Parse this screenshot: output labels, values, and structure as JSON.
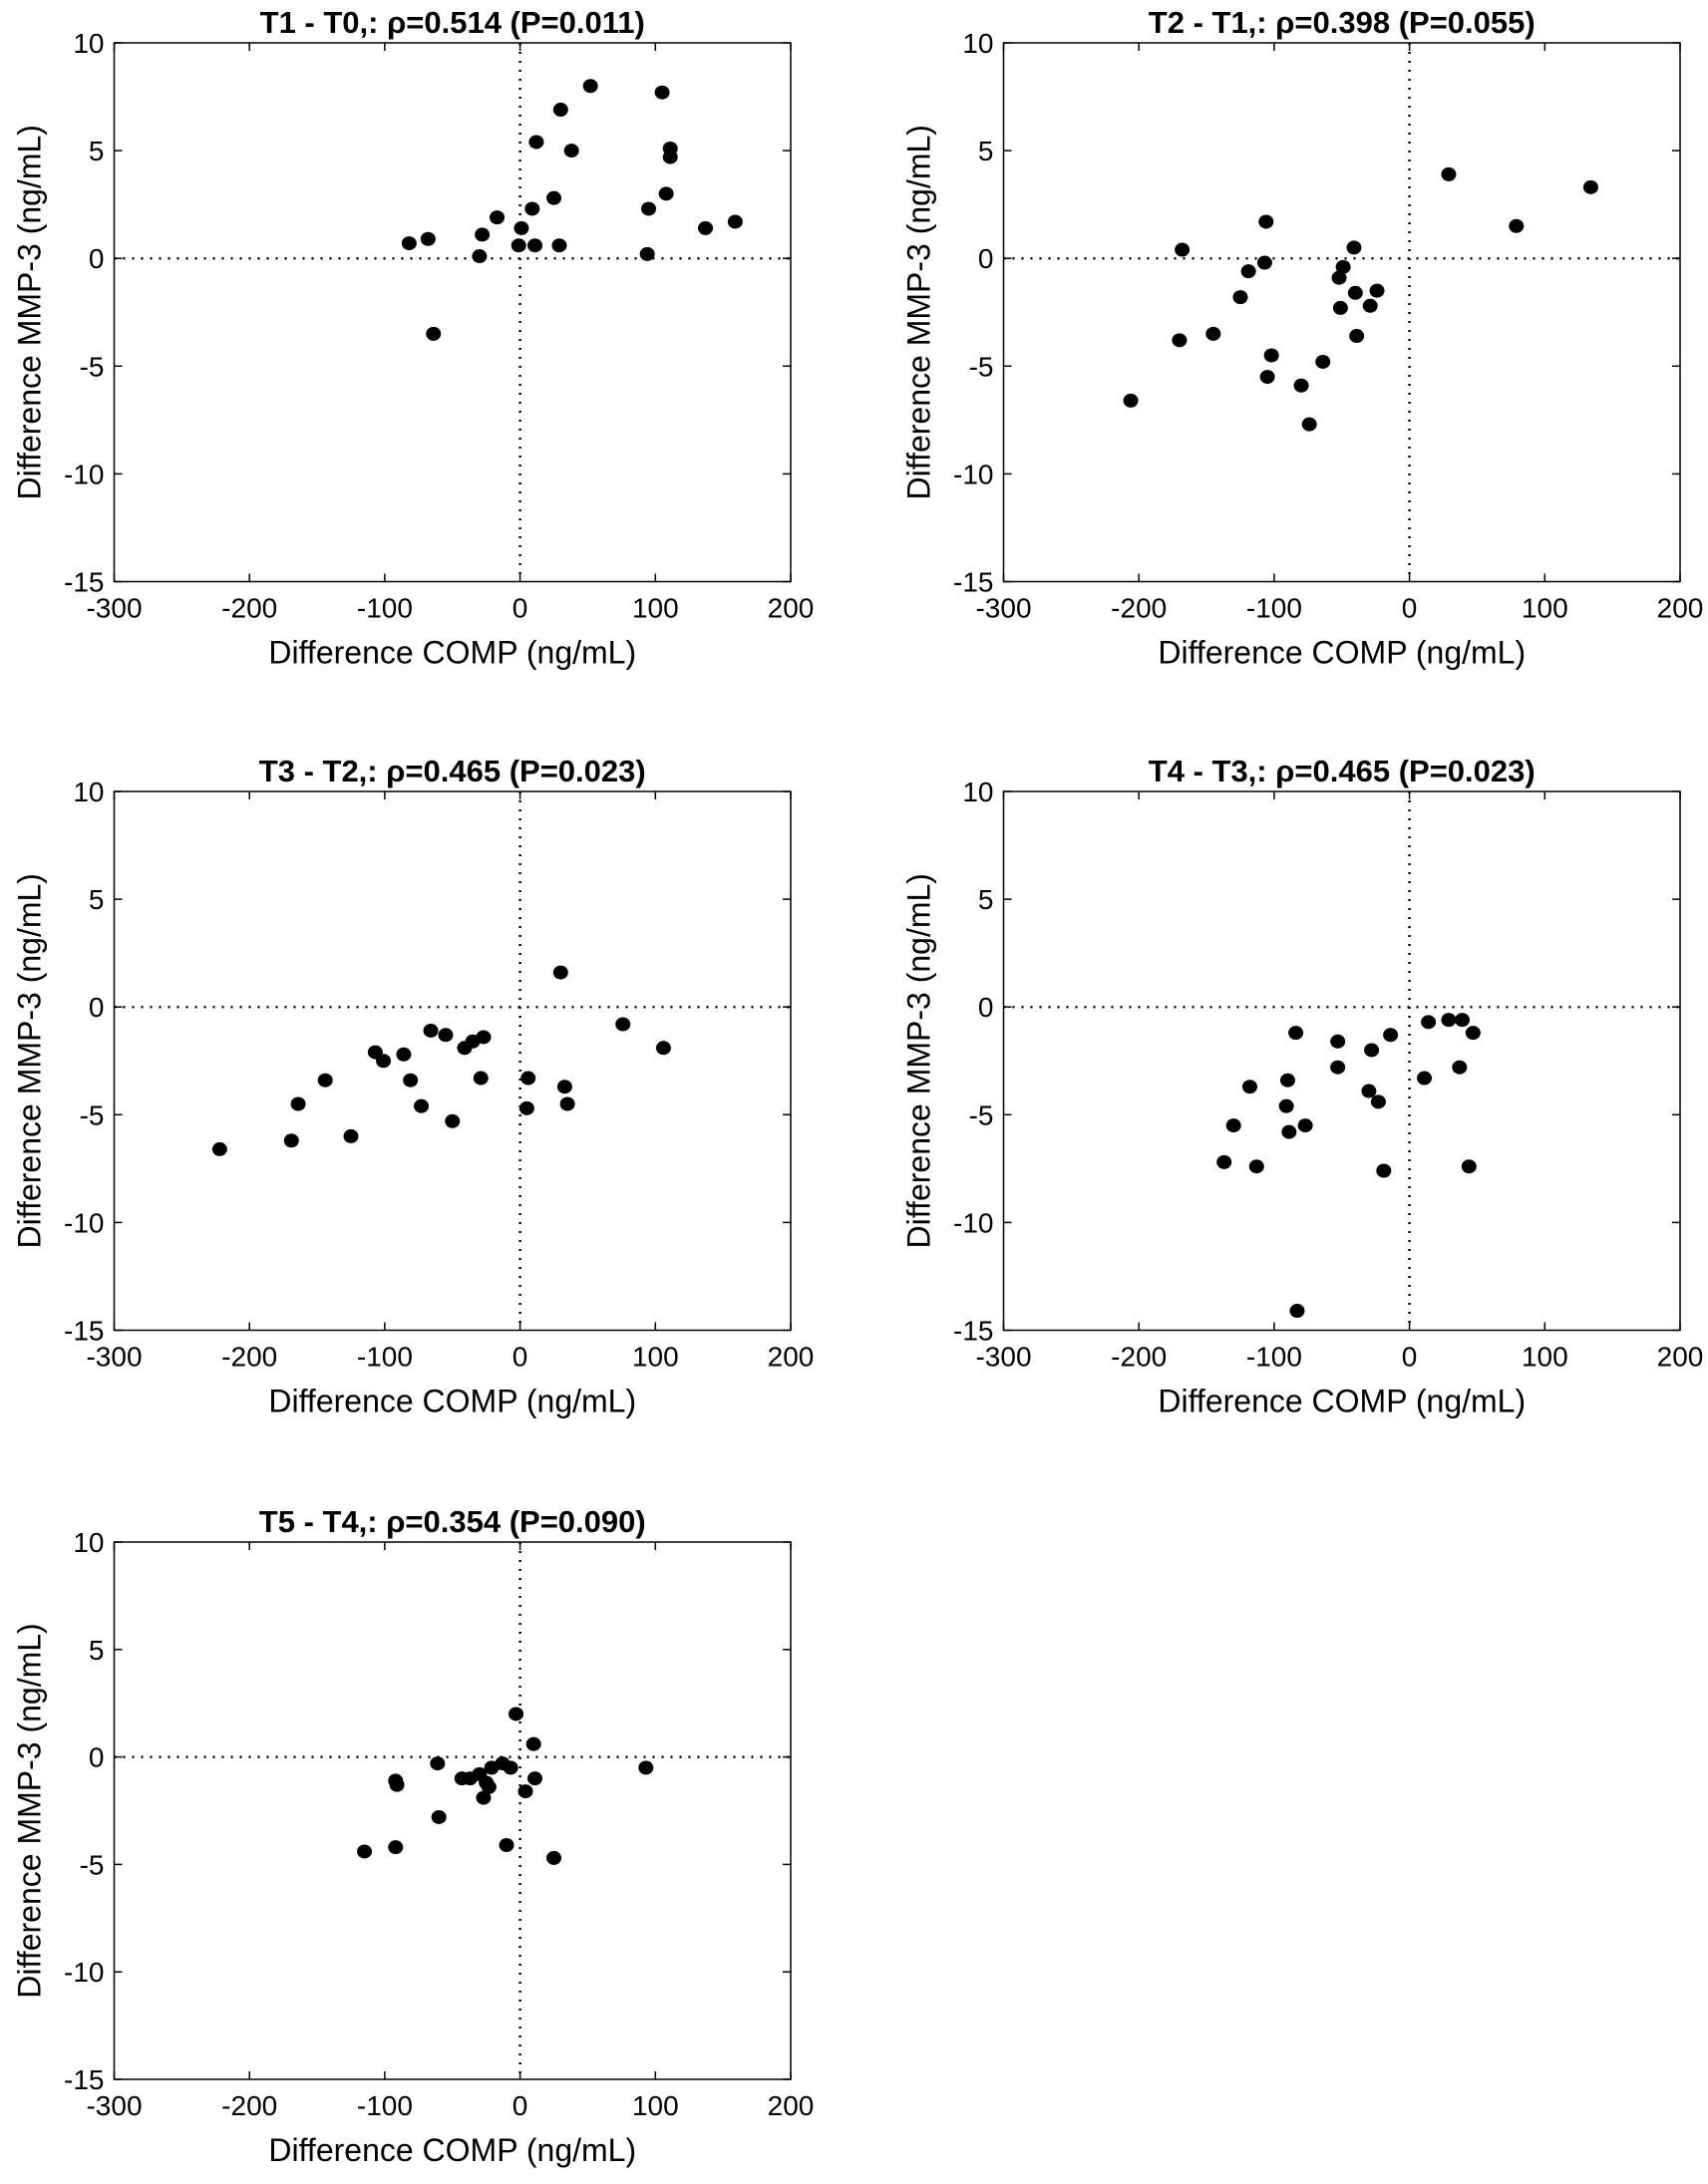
{
  "chart_data": [
    {
      "type": "scatter",
      "title": "T1 - T0,: ρ=0.514 (P=0.011)",
      "xlabel": "Difference COMP (ng/mL)",
      "ylabel": "Difference MMP-3 (ng/mL)",
      "xlim": [
        -300,
        200
      ],
      "ylim": [
        -15,
        10
      ],
      "xticks": [
        -300,
        -200,
        -100,
        0,
        100,
        200
      ],
      "yticks": [
        -15,
        -10,
        -5,
        0,
        5,
        10
      ],
      "reference_lines": {
        "x": 0,
        "y": 0,
        "style": "dotted"
      },
      "grid": false,
      "marker_color": "#000000",
      "points": [
        [
          -82,
          0.7
        ],
        [
          -68,
          0.9
        ],
        [
          -64,
          -3.5
        ],
        [
          -28,
          1.1
        ],
        [
          -30,
          0.1
        ],
        [
          -17,
          1.9
        ],
        [
          1,
          1.4
        ],
        [
          -1,
          0.6
        ],
        [
          9,
          2.3
        ],
        [
          12,
          5.4
        ],
        [
          11,
          0.6
        ],
        [
          25,
          2.8
        ],
        [
          30,
          6.9
        ],
        [
          29,
          0.6
        ],
        [
          38,
          5.0
        ],
        [
          52,
          8.0
        ],
        [
          95,
          2.3
        ],
        [
          94,
          0.2
        ],
        [
          105,
          7.7
        ],
        [
          108,
          3.0
        ],
        [
          111,
          5.1
        ],
        [
          111,
          4.7
        ],
        [
          137,
          1.4
        ],
        [
          159,
          1.7
        ]
      ]
    },
    {
      "type": "scatter",
      "title": "T2 - T1,: ρ=0.398 (P=0.055)",
      "xlabel": "Difference COMP (ng/mL)",
      "ylabel": "Difference MMP-3 (ng/mL)",
      "xlim": [
        -300,
        200
      ],
      "ylim": [
        -15,
        10
      ],
      "xticks": [
        -300,
        -200,
        -100,
        0,
        100,
        200
      ],
      "yticks": [
        -15,
        -10,
        -5,
        0,
        5,
        10
      ],
      "reference_lines": {
        "x": 0,
        "y": 0,
        "style": "dotted"
      },
      "grid": false,
      "marker_color": "#000000",
      "points": [
        [
          -206,
          -6.6
        ],
        [
          -168,
          0.4
        ],
        [
          -170,
          -3.8
        ],
        [
          -145,
          -3.5
        ],
        [
          -125,
          -1.8
        ],
        [
          -119,
          -0.6
        ],
        [
          -106,
          1.7
        ],
        [
          -107,
          -0.2
        ],
        [
          -102,
          -4.5
        ],
        [
          -105,
          -5.5
        ],
        [
          -80,
          -5.9
        ],
        [
          -74,
          -7.7
        ],
        [
          -64,
          -4.8
        ],
        [
          -52,
          -0.9
        ],
        [
          -49,
          -0.4
        ],
        [
          -51,
          -2.3
        ],
        [
          -41,
          0.5
        ],
        [
          -40,
          -1.6
        ],
        [
          -39,
          -3.6
        ],
        [
          -29,
          -2.2
        ],
        [
          -24,
          -1.5
        ],
        [
          29,
          3.9
        ],
        [
          79,
          1.5
        ],
        [
          134,
          3.3
        ]
      ]
    },
    {
      "type": "scatter",
      "title": "T3 - T2,: ρ=0.465 (P=0.023)",
      "xlabel": "Difference COMP (ng/mL)",
      "ylabel": "Difference MMP-3 (ng/mL)",
      "xlim": [
        -300,
        200
      ],
      "ylim": [
        -15,
        10
      ],
      "xticks": [
        -300,
        -200,
        -100,
        0,
        100,
        200
      ],
      "yticks": [
        -15,
        -10,
        -5,
        0,
        5,
        10
      ],
      "reference_lines": {
        "x": 0,
        "y": 0,
        "style": "dotted"
      },
      "grid": false,
      "marker_color": "#000000",
      "points": [
        [
          -222,
          -6.6
        ],
        [
          -164,
          -4.5
        ],
        [
          -169,
          -6.2
        ],
        [
          -144,
          -3.4
        ],
        [
          -125,
          -6.0
        ],
        [
          -107,
          -2.1
        ],
        [
          -101,
          -2.5
        ],
        [
          -86,
          -2.2
        ],
        [
          -81,
          -3.4
        ],
        [
          -73,
          -4.6
        ],
        [
          -66,
          -1.1
        ],
        [
          -55,
          -1.3
        ],
        [
          -50,
          -5.3
        ],
        [
          -41,
          -1.9
        ],
        [
          -35,
          -1.6
        ],
        [
          -27,
          -1.4
        ],
        [
          -29,
          -3.3
        ],
        [
          6,
          -3.3
        ],
        [
          5,
          -4.7
        ],
        [
          30,
          1.6
        ],
        [
          33,
          -3.7
        ],
        [
          35,
          -4.5
        ],
        [
          76,
          -0.8
        ],
        [
          106,
          -1.9
        ]
      ]
    },
    {
      "type": "scatter",
      "title": "T4 - T3,: ρ=0.465 (P=0.023)",
      "xlabel": "Difference COMP (ng/mL)",
      "ylabel": "Difference MMP-3 (ng/mL)",
      "xlim": [
        -300,
        200
      ],
      "ylim": [
        -15,
        10
      ],
      "xticks": [
        -300,
        -200,
        -100,
        0,
        100,
        200
      ],
      "yticks": [
        -15,
        -10,
        -5,
        0,
        5,
        10
      ],
      "reference_lines": {
        "x": 0,
        "y": 0,
        "style": "dotted"
      },
      "grid": false,
      "marker_color": "#000000",
      "points": [
        [
          -137,
          -7.2
        ],
        [
          -130,
          -5.5
        ],
        [
          -118,
          -3.7
        ],
        [
          -113,
          -7.4
        ],
        [
          -90,
          -3.4
        ],
        [
          -91,
          -4.6
        ],
        [
          -89,
          -5.8
        ],
        [
          -84,
          -1.2
        ],
        [
          -77,
          -5.5
        ],
        [
          -83,
          -14.1
        ],
        [
          -53,
          -1.6
        ],
        [
          -53,
          -2.8
        ],
        [
          -30,
          -3.9
        ],
        [
          -28,
          -2.0
        ],
        [
          -23,
          -4.4
        ],
        [
          -19,
          -7.6
        ],
        [
          -14,
          -1.3
        ],
        [
          11,
          -3.3
        ],
        [
          14,
          -0.7
        ],
        [
          29,
          -0.6
        ],
        [
          39,
          -0.6
        ],
        [
          37,
          -2.8
        ],
        [
          47,
          -1.2
        ],
        [
          44,
          -7.4
        ]
      ]
    },
    {
      "type": "scatter",
      "title": "T5 - T4,: ρ=0.354 (P=0.090)",
      "xlabel": "Difference COMP (ng/mL)",
      "ylabel": "Difference MMP-3 (ng/mL)",
      "xlim": [
        -300,
        200
      ],
      "ylim": [
        -15,
        10
      ],
      "xticks": [
        -300,
        -200,
        -100,
        0,
        100,
        200
      ],
      "yticks": [
        -15,
        -10,
        -5,
        0,
        5,
        10
      ],
      "reference_lines": {
        "x": 0,
        "y": 0,
        "style": "dotted"
      },
      "grid": false,
      "marker_color": "#000000",
      "points": [
        [
          -115,
          -4.4
        ],
        [
          -92,
          -4.2
        ],
        [
          -92,
          -1.1
        ],
        [
          -91,
          -1.3
        ],
        [
          -61,
          -0.3
        ],
        [
          -60,
          -2.8
        ],
        [
          -43,
          -1.0
        ],
        [
          -37,
          -1.0
        ],
        [
          -30,
          -0.8
        ],
        [
          -25,
          -1.2
        ],
        [
          -27,
          -1.9
        ],
        [
          -23,
          -1.4
        ],
        [
          -21,
          -0.5
        ],
        [
          -13,
          -0.3
        ],
        [
          -7,
          -0.5
        ],
        [
          -10,
          -4.1
        ],
        [
          -3,
          2.0
        ],
        [
          4,
          -1.6
        ],
        [
          10,
          0.6
        ],
        [
          11,
          -1.0
        ],
        [
          25,
          -4.7
        ],
        [
          93,
          -0.5
        ]
      ]
    }
  ]
}
